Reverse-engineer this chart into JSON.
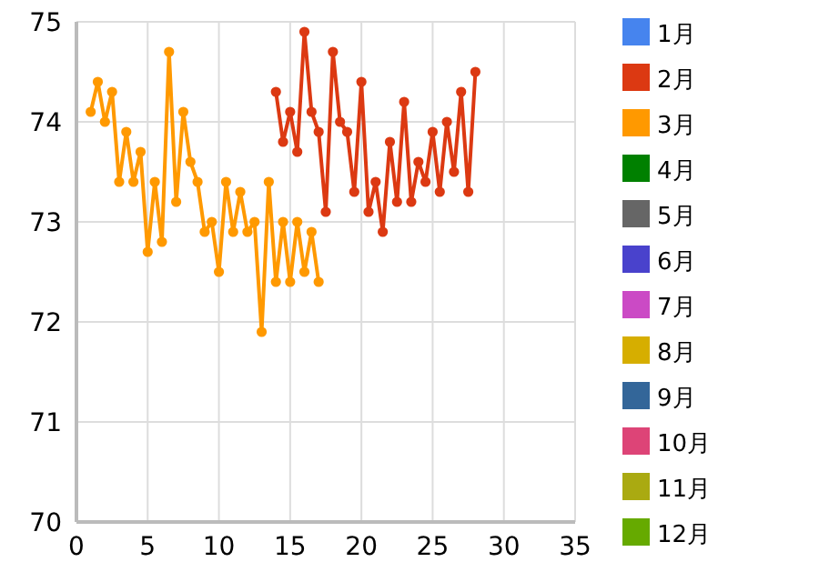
{
  "chart_data": {
    "type": "line",
    "xlim": [
      0,
      35
    ],
    "xticks": [
      0,
      5,
      10,
      15,
      20,
      25,
      30,
      35
    ],
    "ylim": [
      70,
      75
    ],
    "yticks": [
      70,
      71,
      72,
      73,
      74,
      75
    ],
    "grid": true,
    "legend": "right",
    "marker": "circle",
    "series": [
      {
        "name": "1月",
        "color": "#4684ee"
      },
      {
        "name": "2月",
        "color": "#dc3912",
        "x": [
          14,
          14.5,
          15,
          15.5,
          16,
          16.5,
          17,
          17.5,
          18,
          18.5,
          19,
          19.5,
          20,
          20.5,
          21,
          21.5,
          22,
          22.5,
          23,
          23.5,
          24,
          24.5,
          25,
          25.5,
          26,
          26.5,
          27,
          27.5,
          28
        ],
        "values": [
          74.3,
          73.8,
          74.1,
          73.7,
          74.9,
          74.1,
          73.9,
          73.1,
          74.7,
          74.0,
          73.9,
          73.3,
          74.4,
          73.1,
          73.4,
          72.9,
          73.8,
          73.2,
          74.2,
          73.2,
          73.6,
          73.4,
          73.9,
          73.3,
          74.0,
          73.5,
          74.3,
          73.3,
          74.5
        ]
      },
      {
        "name": "3月",
        "color": "#ff9900",
        "x": [
          1,
          1.5,
          2,
          2.5,
          3,
          3.5,
          4,
          4.5,
          5,
          5.5,
          6,
          6.5,
          7,
          7.5,
          8,
          8.5,
          9,
          9.5,
          10,
          10.5,
          11,
          11.5,
          12,
          12.5,
          13,
          13.5,
          14,
          14.5,
          15,
          15.5,
          16,
          16.5,
          17
        ],
        "values": [
          74.1,
          74.4,
          74.0,
          74.3,
          73.4,
          73.9,
          73.4,
          73.7,
          72.7,
          73.4,
          72.8,
          74.7,
          73.2,
          74.1,
          73.6,
          73.4,
          72.9,
          73.0,
          72.5,
          73.4,
          72.9,
          73.3,
          72.9,
          73.0,
          71.9,
          73.4,
          72.4,
          73.0,
          72.4,
          73.0,
          72.5,
          72.9,
          72.4
        ]
      },
      {
        "name": "4月",
        "color": "#008000"
      },
      {
        "name": "5月",
        "color": "#666666"
      },
      {
        "name": "6月",
        "color": "#4942cc"
      },
      {
        "name": "7月",
        "color": "#cb4ac5"
      },
      {
        "name": "8月",
        "color": "#d6ae00"
      },
      {
        "name": "9月",
        "color": "#336699"
      },
      {
        "name": "10月",
        "color": "#dd4477"
      },
      {
        "name": "11月",
        "color": "#aaaa11"
      },
      {
        "name": "12月",
        "color": "#66aa00"
      }
    ]
  }
}
